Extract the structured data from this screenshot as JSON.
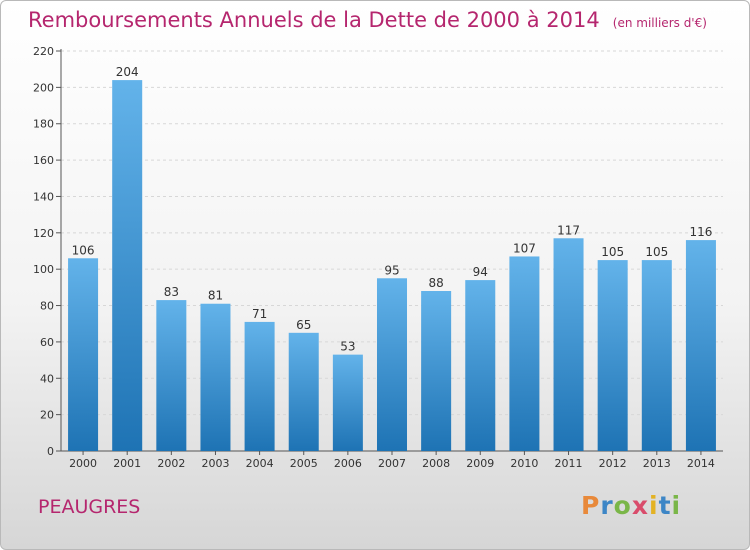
{
  "title": "Remboursements Annuels de la Dette de 2000 à 2014",
  "unit": "(en milliers d'€)",
  "town": "PEAUGRES",
  "logo": {
    "letters": [
      "P",
      "r",
      "o",
      "x",
      "i",
      "t",
      "i"
    ],
    "colors": [
      "#e8893a",
      "#3d86c6",
      "#7ab648",
      "#d94c6b",
      "#e3b224",
      "#3d86c6",
      "#7ab648"
    ]
  },
  "colors": {
    "title": "#b5266e",
    "bar_top": "#63b3ea",
    "bar_bottom": "#1e73b4"
  },
  "chart_data": {
    "type": "bar",
    "title": "Remboursements Annuels de la Dette de 2000 à 2014",
    "xlabel": "",
    "ylabel": "",
    "categories": [
      "2000",
      "2001",
      "2002",
      "2003",
      "2004",
      "2005",
      "2006",
      "2007",
      "2008",
      "2009",
      "2010",
      "2011",
      "2012",
      "2013",
      "2014"
    ],
    "values": [
      106,
      204,
      83,
      81,
      71,
      65,
      53,
      95,
      88,
      94,
      107,
      117,
      105,
      105,
      116
    ],
    "ylim": [
      0,
      220
    ],
    "yticks": [
      0,
      20,
      40,
      60,
      80,
      100,
      120,
      140,
      160,
      180,
      200,
      220
    ],
    "grid": true,
    "legend": "none"
  }
}
